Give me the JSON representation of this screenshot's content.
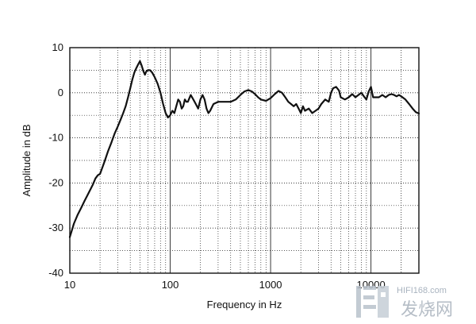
{
  "chart_data": {
    "type": "line",
    "title": "",
    "xlabel": "Frequency in Hz",
    "ylabel": "Amplitude in dB",
    "xscale": "log",
    "xlim": [
      10,
      30000
    ],
    "ylim": [
      -40,
      10
    ],
    "grid": true,
    "x_ticks": [
      10,
      100,
      1000,
      10000
    ],
    "x_tick_labels": [
      "10",
      "100",
      "1000",
      "10000"
    ],
    "y_ticks": [
      10,
      0,
      -10,
      -20,
      -30,
      -40
    ],
    "y_tick_labels": [
      "10",
      "0",
      "-10",
      "-20",
      "-30",
      "-40"
    ],
    "series": [
      {
        "color": "#111111",
        "x": [
          10,
          11,
          12,
          13,
          14,
          15,
          16,
          17,
          18,
          19,
          20,
          22,
          24,
          26,
          28,
          30,
          32,
          34,
          36,
          38,
          40,
          42,
          44,
          46,
          48,
          50,
          52,
          54,
          56,
          58,
          60,
          63,
          66,
          70,
          75,
          80,
          85,
          90,
          95,
          100,
          105,
          110,
          115,
          120,
          125,
          130,
          135,
          140,
          145,
          150,
          160,
          170,
          180,
          190,
          200,
          210,
          220,
          230,
          240,
          250,
          270,
          300,
          350,
          400,
          450,
          500,
          550,
          600,
          650,
          700,
          750,
          800,
          900,
          1000,
          1100,
          1200,
          1300,
          1400,
          1500,
          1600,
          1700,
          1800,
          1900,
          2000,
          2100,
          2200,
          2400,
          2600,
          2800,
          3000,
          3200,
          3500,
          3800,
          4000,
          4200,
          4500,
          4800,
          5000,
          5500,
          6000,
          6500,
          7000,
          7500,
          8000,
          8500,
          9000,
          9500,
          10000,
          10500,
          11000,
          12000,
          13000,
          14000,
          15000,
          16000,
          17000,
          18000,
          19000,
          20000,
          22000,
          24000,
          26000,
          28000,
          30000
        ],
        "y": [
          -32.0,
          -29.0,
          -27.0,
          -25.5,
          -24.0,
          -22.7,
          -21.5,
          -20.3,
          -19.0,
          -18.3,
          -18.0,
          -15.5,
          -13.0,
          -11.0,
          -9.0,
          -7.5,
          -6.0,
          -4.5,
          -3.0,
          -1.0,
          1.0,
          3.0,
          4.5,
          5.5,
          6.3,
          7.0,
          6.0,
          4.8,
          4.0,
          4.8,
          5.0,
          5.0,
          4.5,
          3.5,
          2.0,
          0.0,
          -2.5,
          -4.5,
          -5.5,
          -5.0,
          -4.0,
          -4.5,
          -3.0,
          -1.5,
          -2.0,
          -3.5,
          -3.0,
          -1.5,
          -2.0,
          -2.0,
          -0.5,
          -1.5,
          -2.5,
          -3.5,
          -1.5,
          -0.5,
          -1.5,
          -3.5,
          -4.5,
          -4.0,
          -2.5,
          -2.0,
          -2.0,
          -2.0,
          -1.5,
          -0.5,
          0.3,
          0.6,
          0.3,
          -0.3,
          -1.0,
          -1.5,
          -1.8,
          -1.2,
          -0.3,
          0.4,
          0.0,
          -1.0,
          -2.0,
          -2.5,
          -3.0,
          -2.5,
          -3.5,
          -4.5,
          -3.0,
          -4.0,
          -3.5,
          -4.5,
          -4.0,
          -3.5,
          -2.5,
          -1.5,
          -2.0,
          0.0,
          1.0,
          1.3,
          0.5,
          -1.0,
          -1.5,
          -1.0,
          -0.3,
          -1.0,
          -0.5,
          0.0,
          -0.8,
          -1.5,
          0.3,
          1.3,
          -1.0,
          -1.0,
          -1.0,
          -0.5,
          -1.0,
          -0.5,
          -0.3,
          -0.5,
          -0.8,
          -0.5,
          -0.8,
          -1.5,
          -2.5,
          -3.5,
          -4.3,
          -4.6
        ]
      }
    ]
  },
  "watermark": {
    "url_text": "HIFI168.com",
    "cn_text": "发烧网",
    "color": "#a9b2bd"
  }
}
